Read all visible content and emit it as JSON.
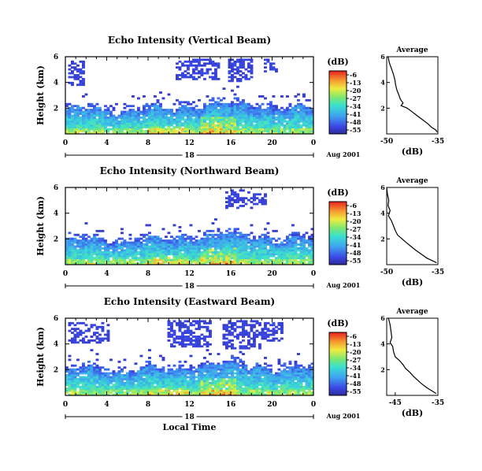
{
  "chart_data": [
    {
      "type": "heatmap",
      "title": "Echo Intensity (Vertical Beam)",
      "ylabel": "Height (km)",
      "y_ticks": [
        "6",
        "4",
        "2"
      ],
      "x_ticks": [
        "0",
        "4",
        "8",
        "12",
        "16",
        "20",
        "0"
      ],
      "date_day": "18",
      "date_label": "Aug 2001",
      "ylim": [
        0,
        6
      ],
      "xlim": [
        0,
        24
      ],
      "colorbar": {
        "title": "(dB)",
        "ticks": [
          "-6",
          "-13",
          "-20",
          "-27",
          "-34",
          "-41",
          "-48",
          "-55"
        ],
        "range": [
          -55,
          -6
        ]
      },
      "field": {
        "base_top_km": 1.9,
        "upper_cloud": [
          [
            0.3,
            1.8,
            3.7,
            5.7
          ],
          [
            10.8,
            14.8,
            4.2,
            5.8
          ],
          [
            15.8,
            18.2,
            4.0,
            5.8
          ],
          [
            19.2,
            20.5,
            4.8,
            5.8
          ]
        ]
      },
      "profile": {
        "title": "Average",
        "xlabel": "(dB)",
        "x_ticks": [
          "-50",
          "-35"
        ],
        "xlim": [
          -50,
          -35
        ],
        "y_ticks": [
          "6",
          "4",
          "2"
        ],
        "ylim": [
          0,
          6
        ],
        "points": [
          [
            -49.6,
            6.0
          ],
          [
            -49.2,
            5.5
          ],
          [
            -48.5,
            5.0
          ],
          [
            -48.0,
            4.6
          ],
          [
            -47.6,
            4.2
          ],
          [
            -47.4,
            3.8
          ],
          [
            -47.0,
            3.4
          ],
          [
            -46.4,
            3.0
          ],
          [
            -46.0,
            2.7
          ],
          [
            -45.2,
            2.4
          ],
          [
            -45.8,
            2.2
          ],
          [
            -44.0,
            2.0
          ],
          [
            -42.5,
            1.7
          ],
          [
            -41.0,
            1.4
          ],
          [
            -39.5,
            1.1
          ],
          [
            -38.0,
            0.8
          ],
          [
            -36.8,
            0.5
          ],
          [
            -35.6,
            0.3
          ],
          [
            -35.2,
            0.15
          ]
        ]
      }
    },
    {
      "type": "heatmap",
      "title": "Echo Intensity (Northward Beam)",
      "ylabel": "Height (km)",
      "y_ticks": [
        "6",
        "4",
        "2"
      ],
      "x_ticks": [
        "0",
        "4",
        "8",
        "12",
        "16",
        "20",
        "0"
      ],
      "date_day": "18",
      "date_label": "Aug 2001",
      "ylim": [
        0,
        6
      ],
      "xlim": [
        0,
        24
      ],
      "colorbar": {
        "title": "(dB)",
        "ticks": [
          "-6",
          "-13",
          "-20",
          "-27",
          "-34",
          "-41",
          "-48",
          "-55"
        ],
        "range": [
          -55,
          -6
        ]
      },
      "field": {
        "base_top_km": 1.9,
        "upper_cloud": [
          [
            15.5,
            18.0,
            4.3,
            5.9
          ],
          [
            18.2,
            19.5,
            4.6,
            5.6
          ]
        ]
      },
      "profile": {
        "title": "Average",
        "xlabel": "(dB)",
        "x_ticks": [
          "-50",
          "-35"
        ],
        "xlim": [
          -50,
          -35
        ],
        "y_ticks": [
          "6",
          "4",
          "2"
        ],
        "ylim": [
          0,
          6
        ],
        "points": [
          [
            -50.0,
            6.0
          ],
          [
            -49.8,
            5.5
          ],
          [
            -49.4,
            5.0
          ],
          [
            -49.6,
            4.6
          ],
          [
            -49.0,
            4.2
          ],
          [
            -49.5,
            3.8
          ],
          [
            -48.6,
            3.4
          ],
          [
            -48.0,
            3.0
          ],
          [
            -47.4,
            2.6
          ],
          [
            -46.8,
            2.3
          ],
          [
            -45.5,
            2.0
          ],
          [
            -44.2,
            1.7
          ],
          [
            -42.8,
            1.4
          ],
          [
            -41.4,
            1.1
          ],
          [
            -39.8,
            0.8
          ],
          [
            -38.2,
            0.5
          ],
          [
            -36.6,
            0.3
          ],
          [
            -35.4,
            0.15
          ]
        ]
      }
    },
    {
      "type": "heatmap",
      "title": "Echo Intensity (Eastward Beam)",
      "ylabel": "Height (km)",
      "xlabel": "Local Time",
      "y_ticks": [
        "6",
        "4",
        "2"
      ],
      "x_ticks": [
        "0",
        "4",
        "8",
        "12",
        "16",
        "20",
        "0"
      ],
      "date_day": "18",
      "date_label": "Aug 2001",
      "ylim": [
        0,
        6
      ],
      "xlim": [
        0,
        24
      ],
      "colorbar": {
        "title": "(dB)",
        "ticks": [
          "-6",
          "-13",
          "-20",
          "-27",
          "-34",
          "-41",
          "-48",
          "-55"
        ],
        "range": [
          -55,
          -6
        ]
      },
      "field": {
        "base_top_km": 2.0,
        "upper_cloud": [
          [
            0.2,
            4.2,
            4.0,
            5.7
          ],
          [
            10.0,
            14.2,
            3.8,
            5.8
          ],
          [
            15.2,
            18.8,
            3.6,
            5.8
          ],
          [
            19.0,
            21.0,
            4.2,
            5.7
          ]
        ]
      },
      "profile": {
        "title": "Average",
        "xlabel": "(dB)",
        "x_ticks": [
          "-45",
          "-35"
        ],
        "xlim": [
          -47,
          -35
        ],
        "y_ticks": [
          "6",
          "4",
          "2"
        ],
        "ylim": [
          0,
          6
        ],
        "points": [
          [
            -46.6,
            6.0
          ],
          [
            -46.2,
            5.5
          ],
          [
            -46.0,
            5.0
          ],
          [
            -45.8,
            4.5
          ],
          [
            -46.2,
            4.1
          ],
          [
            -45.6,
            3.8
          ],
          [
            -45.4,
            3.4
          ],
          [
            -45.0,
            3.0
          ],
          [
            -44.0,
            2.7
          ],
          [
            -43.2,
            2.4
          ],
          [
            -42.6,
            2.1
          ],
          [
            -41.6,
            1.8
          ],
          [
            -40.8,
            1.5
          ],
          [
            -39.8,
            1.2
          ],
          [
            -38.8,
            0.9
          ],
          [
            -37.6,
            0.6
          ],
          [
            -36.4,
            0.35
          ],
          [
            -35.4,
            0.15
          ]
        ]
      }
    }
  ]
}
